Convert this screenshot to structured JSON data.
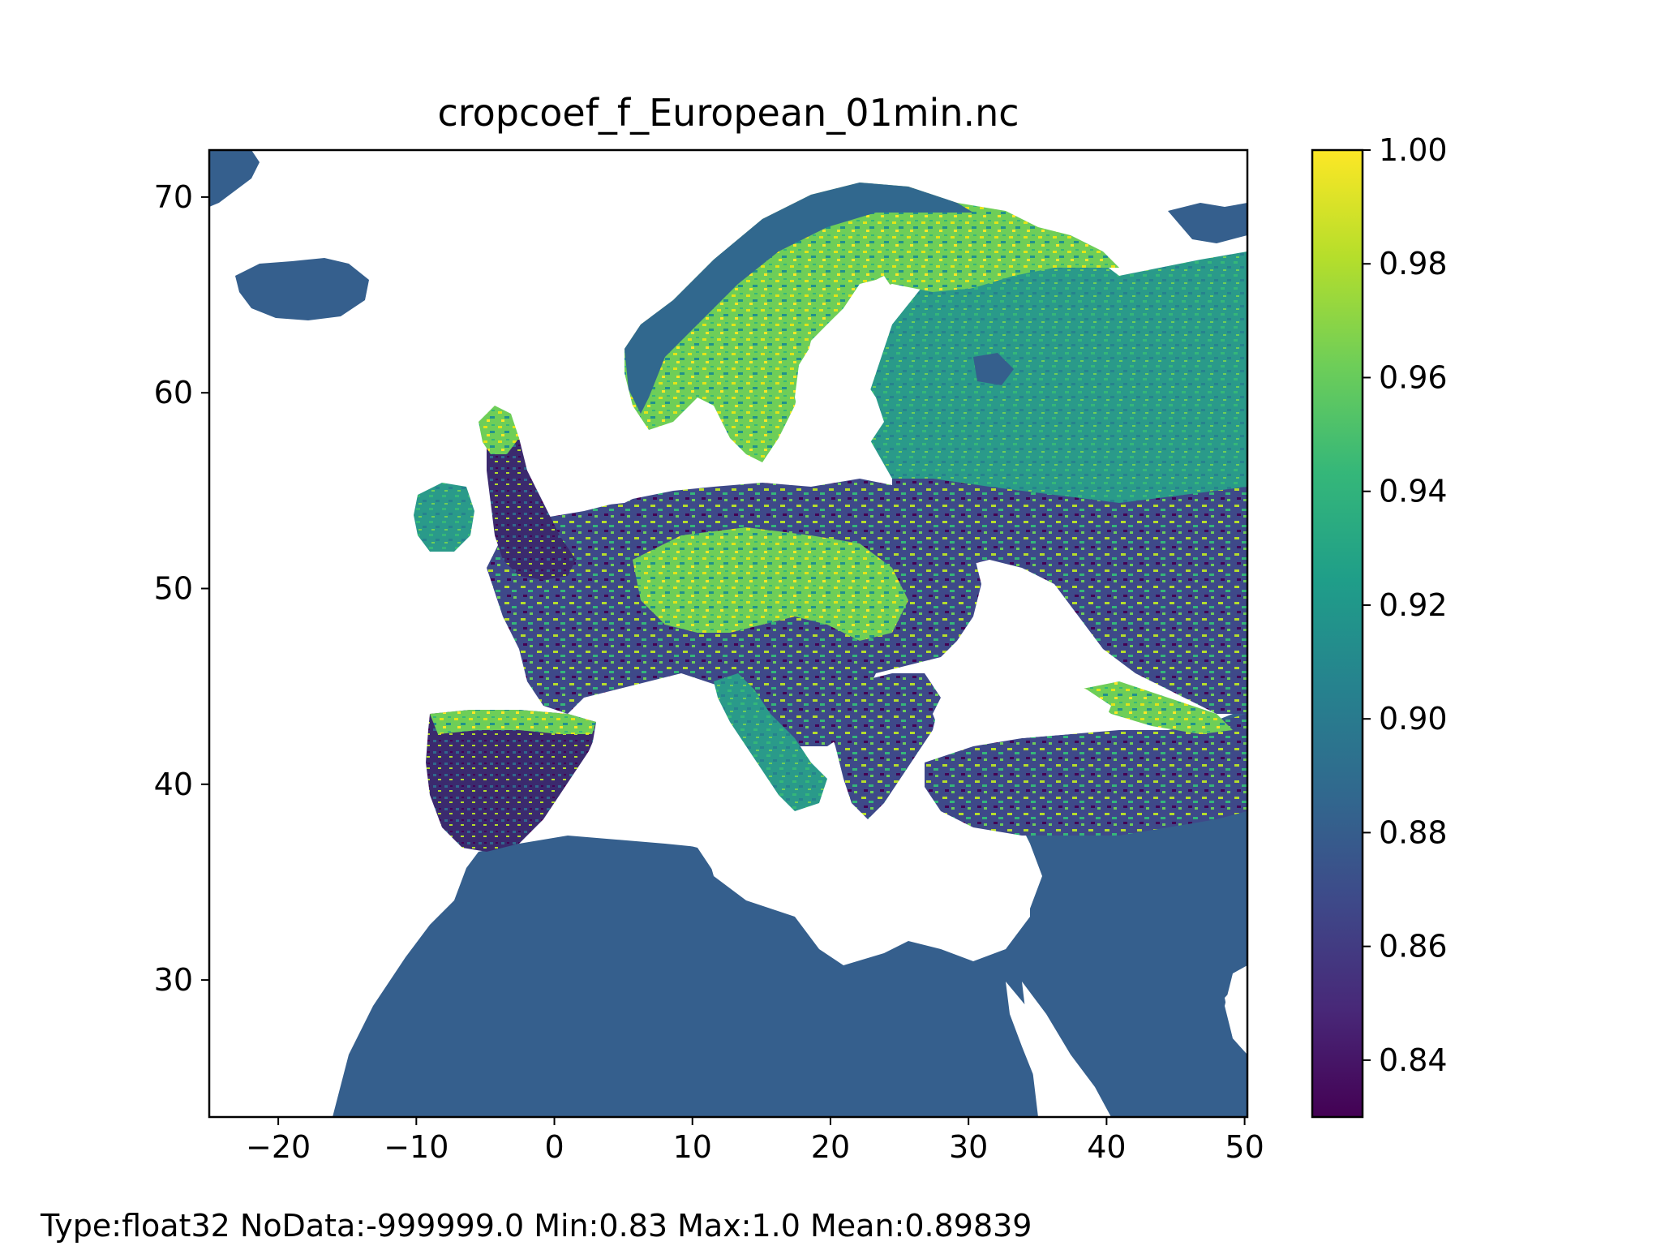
{
  "title": "cropcoef_f_European_01min.nc",
  "stats": "Type:float32  NoData:-999999.0  Min:0.83  Max:1.0  Mean:0.89839",
  "map": {
    "x_range": [
      -25,
      50.2
    ],
    "y_range": [
      23,
      72.4
    ],
    "x_ticks": [
      -20,
      -10,
      0,
      10,
      20,
      30,
      40,
      50
    ],
    "x_tick_labels": [
      "−20",
      "−10",
      "0",
      "10",
      "20",
      "30",
      "40",
      "50"
    ],
    "y_ticks": [
      30,
      40,
      50,
      60,
      70
    ],
    "y_tick_labels": [
      "30",
      "40",
      "50",
      "60",
      "70"
    ]
  },
  "colorbar": {
    "colormap": "viridis",
    "range": [
      0.83,
      1.0
    ],
    "ticks": [
      0.84,
      0.86,
      0.88,
      0.9,
      0.92,
      0.94,
      0.96,
      0.98,
      1.0
    ],
    "tick_labels": [
      "0.84",
      "0.86",
      "0.88",
      "0.90",
      "0.92",
      "0.94",
      "0.96",
      "0.98",
      "1.00"
    ],
    "stops": [
      "#440154",
      "#482878",
      "#3e4989",
      "#31688e",
      "#26828e",
      "#1f9e89",
      "#35b779",
      "#6ece58",
      "#b5de2b",
      "#fde725"
    ]
  },
  "colors": {
    "ocean": "#ffffff",
    "base_land": "#355f8d",
    "low": "#3b2a6e",
    "mid": "#21918c",
    "high": "#7ad151",
    "top": "#e3e418"
  }
}
